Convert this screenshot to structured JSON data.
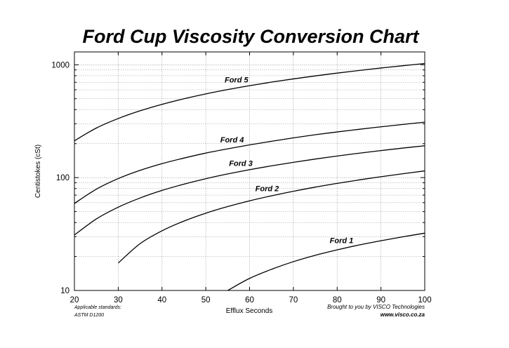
{
  "chart_data": {
    "type": "line",
    "title": "Ford Cup Viscosity Conversion Chart",
    "xlabel": "Efflux Seconds",
    "ylabel": "Centistokes (cSt)",
    "xlim": [
      20,
      100
    ],
    "ylim": [
      10,
      1300
    ],
    "yscale": "log",
    "grid": true,
    "x_ticks": [
      "20",
      "30",
      "40",
      "50",
      "60",
      "70",
      "80",
      "90",
      "100"
    ],
    "y_ticks": [
      "10",
      "100",
      "1000"
    ],
    "series": [
      {
        "name": "Ford 1",
        "x": [
          55,
          60,
          65,
          70,
          75,
          80,
          85,
          90,
          95,
          100
        ],
        "y": [
          10,
          12.8,
          15.4,
          18.0,
          20.5,
          22.9,
          25.3,
          27.6,
          29.9,
          32.2
        ]
      },
      {
        "name": "Ford 2",
        "x": [
          30,
          35,
          40,
          45,
          50,
          55,
          60,
          65,
          70,
          75,
          80,
          85,
          90,
          95,
          100
        ],
        "y": [
          17.5,
          26,
          33.8,
          41.2,
          48.4,
          55.4,
          62.3,
          69.0,
          75.7,
          82.4,
          88.9,
          95.4,
          101.9,
          108.3,
          114.7
        ]
      },
      {
        "name": "Ford 3",
        "x": [
          20,
          25,
          30,
          35,
          40,
          45,
          50,
          55,
          60,
          65,
          70,
          75,
          80,
          85,
          90,
          95,
          100
        ],
        "y": [
          31,
          43,
          54.7,
          66,
          77,
          87.5,
          97.8,
          107.8,
          117.6,
          127.2,
          136.7,
          146.1,
          155.4,
          164.6,
          173.7,
          182.7,
          191.7
        ]
      },
      {
        "name": "Ford 4",
        "x": [
          20,
          25,
          30,
          35,
          40,
          45,
          50,
          55,
          60,
          65,
          70,
          75,
          80,
          85,
          90,
          95,
          100
        ],
        "y": [
          59,
          79,
          98,
          116,
          133,
          149,
          165,
          180,
          195,
          210,
          225,
          240,
          254,
          268,
          282,
          296,
          310
        ]
      },
      {
        "name": "Ford 5",
        "x": [
          20,
          25,
          30,
          35,
          40,
          45,
          50,
          55,
          60,
          65,
          70,
          75,
          80,
          85,
          90,
          95,
          100
        ],
        "y": [
          212,
          275,
          334,
          391,
          446,
          500,
          552,
          603,
          653,
          702,
          750,
          797,
          844,
          890,
          936,
          981,
          1026
        ]
      }
    ]
  },
  "footer": {
    "standards_label": "Applicable standards:",
    "standards_value": "ASTM D1200",
    "credit": "Brought to you by VISCO Technologies",
    "url": "www.visco.co.za"
  },
  "colors": {
    "line": "#000000",
    "grid": "#999999",
    "background": "#ffffff"
  }
}
